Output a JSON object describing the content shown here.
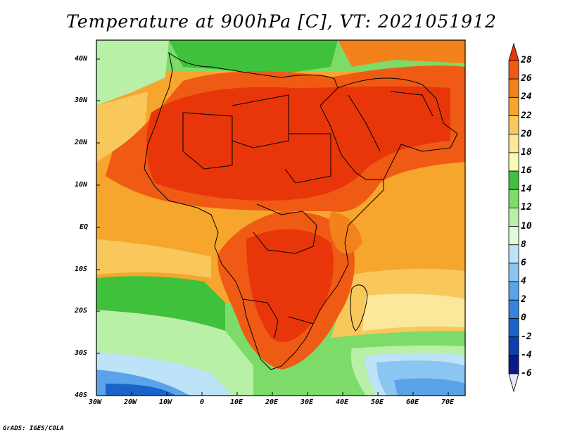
{
  "title": "Temperature at 900hPa [C], VT: 2021051912",
  "credit": "GrADS: IGES/COLA",
  "map": {
    "lat_labels": [
      "40N",
      "30N",
      "20N",
      "10N",
      "EQ",
      "10S",
      "20S",
      "30S",
      "40S"
    ],
    "lon_labels": [
      "30W",
      "20W",
      "10W",
      "0",
      "10E",
      "20E",
      "30E",
      "40E",
      "50E",
      "60E",
      "70E"
    ]
  },
  "colorbar": {
    "levels": [
      "28",
      "26",
      "24",
      "22",
      "20",
      "18",
      "16",
      "14",
      "12",
      "10",
      "8",
      "6",
      "4",
      "2",
      "0",
      "-2",
      "-4",
      "-6"
    ],
    "colors": [
      "#e8360a",
      "#ef5b14",
      "#f4821c",
      "#f6a62c",
      "#f8c85c",
      "#fbe89a",
      "#f9fab6",
      "#3fc13c",
      "#7ddb6a",
      "#b7f0a6",
      "#e1fbe1",
      "#bde3f8",
      "#8bc5f1",
      "#5ba3e8",
      "#3386e0",
      "#1a63c9",
      "#0d3fb0",
      "#0b1a8a",
      "#e6e6ff"
    ]
  }
}
